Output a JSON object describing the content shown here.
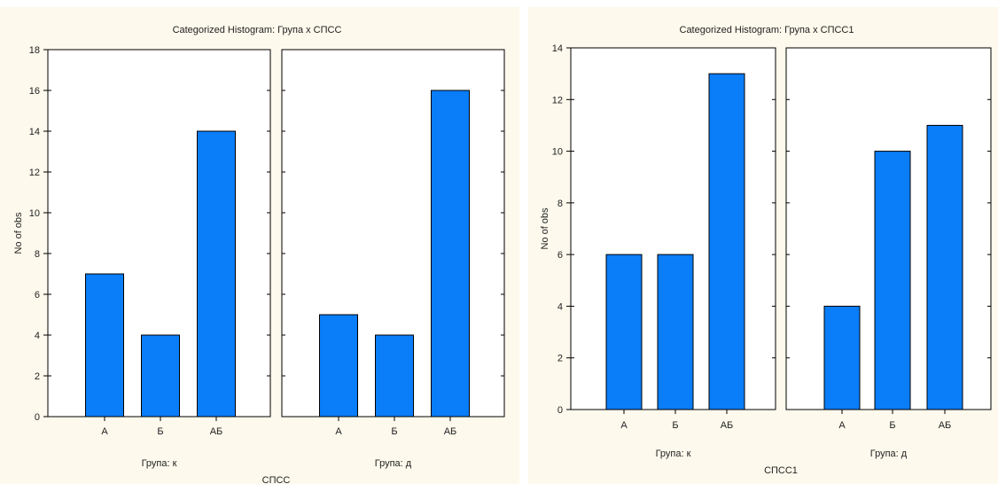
{
  "chart_data": [
    {
      "type": "bar",
      "title": "Categorized Histogram: Група x СПСС",
      "ylabel": "No of obs",
      "xlabel": "СПСС",
      "ylim": [
        0,
        18
      ],
      "yticks": [
        0,
        2,
        4,
        6,
        8,
        10,
        12,
        14,
        16,
        18
      ],
      "grid": false,
      "bar_color": "#0a7df8",
      "panels": [
        {
          "label": "Група: к",
          "categories": [
            "A",
            "Б",
            "AБ"
          ],
          "values": [
            7,
            4,
            14
          ]
        },
        {
          "label": "Група: д",
          "categories": [
            "A",
            "Б",
            "AБ"
          ],
          "values": [
            5,
            4,
            16
          ]
        }
      ]
    },
    {
      "type": "bar",
      "title": "Categorized Histogram: Група x СПСС1",
      "ylabel": "No of obs",
      "xlabel": "СПСС1",
      "ylim": [
        0,
        14
      ],
      "yticks": [
        0,
        2,
        4,
        6,
        8,
        10,
        12,
        14
      ],
      "grid": false,
      "bar_color": "#0a7df8",
      "panels": [
        {
          "label": "Група: к",
          "categories": [
            "A",
            "Б",
            "AБ"
          ],
          "values": [
            6,
            6,
            13
          ]
        },
        {
          "label": "Група: д",
          "categories": [
            "A",
            "Б",
            "AБ"
          ],
          "values": [
            4,
            10,
            11
          ]
        }
      ]
    }
  ]
}
